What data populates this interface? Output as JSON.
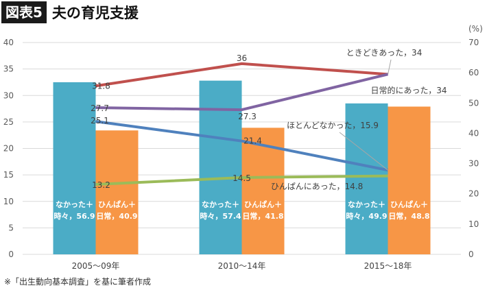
{
  "header": {
    "badge": "図表5",
    "title": "夫の育児支援"
  },
  "source_note": "※「出生動向基本調査」を基に筆者作成",
  "chart_data": {
    "type": "bar",
    "categories": [
      "2005〜09年",
      "2010〜14年",
      "2015〜18年"
    ],
    "ylim_left": [
      0,
      40
    ],
    "yticks_left": [
      0,
      5,
      10,
      15,
      20,
      25,
      30,
      35,
      40
    ],
    "ylim_right": [
      0,
      70
    ],
    "yticks_right": [
      0,
      10,
      20,
      30,
      40,
      50,
      60,
      70
    ],
    "right_unit": "(%)",
    "grid": true,
    "bar_series": [
      {
        "labels": [
          "なかった＋\n時々，56.9",
          "なかった＋\n時々，57.4",
          "なかった＋\n時々，49.9"
        ],
        "values": [
          32.5,
          32.8,
          28.5
        ],
        "color": "#4bacc6"
      },
      {
        "labels": [
          "ひんぱん＋\n日常，40.9",
          "ひんぱん＋\n日常，41.8",
          "ひんぱん＋\n日常，48.8"
        ],
        "values": [
          23.4,
          23.9,
          27.9
        ],
        "color": "#f79646"
      }
    ],
    "line_series": [
      {
        "name": "ときどきあった，34",
        "values": [
          31.8,
          36,
          34
        ],
        "color": "#c0504d",
        "point_labels": [
          "31.8",
          "36",
          ""
        ]
      },
      {
        "name": "日常的にあった，34",
        "values": [
          27.7,
          27.3,
          34
        ],
        "color": "#8064a2",
        "point_labels": [
          "27.7",
          "27.3",
          ""
        ]
      },
      {
        "name": "ほとんどなかった，15.9",
        "values": [
          25.1,
          21.4,
          15.9
        ],
        "color": "#4f81bd",
        "point_labels": [
          "25.1",
          "21.4",
          ""
        ]
      },
      {
        "name": "ひんぱんにあった，14.8",
        "values": [
          13.2,
          14.5,
          14.8
        ],
        "color": "#9bbb59",
        "point_labels": [
          "13.2",
          "14.5",
          ""
        ]
      }
    ]
  }
}
